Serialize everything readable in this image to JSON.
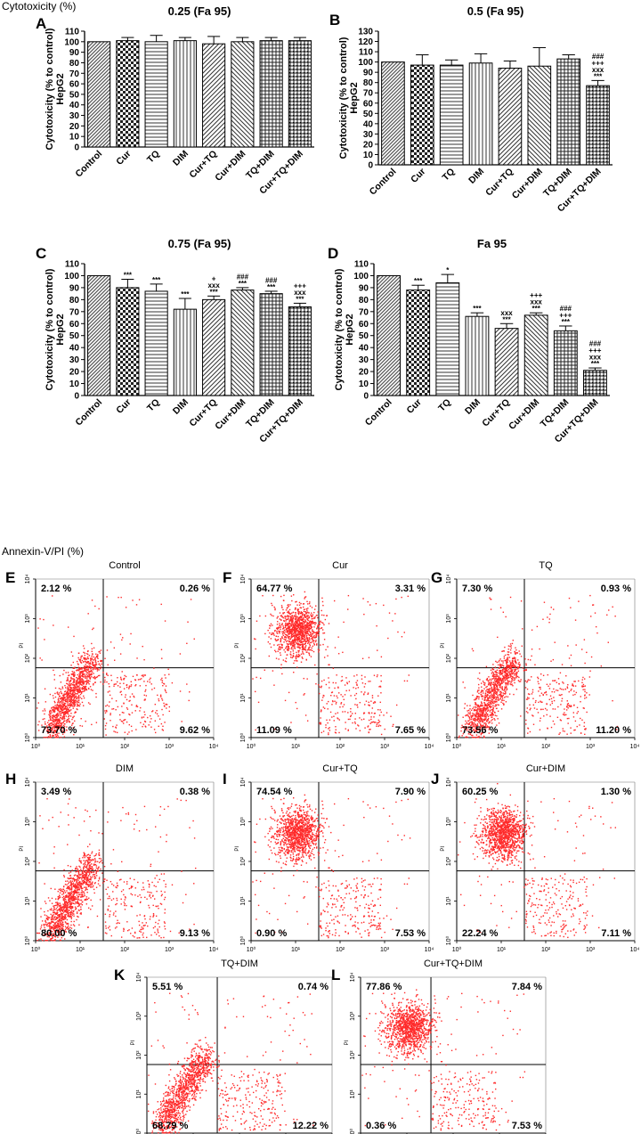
{
  "sections": {
    "cytotoxicity": "Cytotoxicity (%)",
    "annexin": "Annexin-V/PI (%)"
  },
  "colors": {
    "scatter": "#ff2a2a",
    "axis": "#000000",
    "bar_edge": "#000000"
  },
  "chart_data": [
    {
      "type": "bar",
      "panel": "A",
      "title": "0.25 (Fa 95)",
      "ylabel": "Cytotoxicity (% to control)",
      "ylabel2": "HepG2",
      "ylim": [
        0,
        110
      ],
      "yticks": [
        0,
        10,
        20,
        30,
        40,
        50,
        60,
        70,
        80,
        90,
        100,
        110
      ],
      "categories": [
        "Control",
        "Cur",
        "TQ",
        "DIM",
        "Cur+TQ",
        "Cur+DIM",
        "TQ+DIM",
        "Cur+TQ+DIM"
      ],
      "values": [
        100,
        101,
        100,
        101,
        98,
        100,
        101,
        101
      ],
      "errors": [
        0,
        3,
        6,
        3,
        7,
        4,
        3,
        3
      ],
      "annotations": [
        "",
        "",
        "",
        "",
        "",
        "",
        "",
        ""
      ]
    },
    {
      "type": "bar",
      "panel": "B",
      "title": "0.5 (Fa 95)",
      "ylabel": "Cytotoxicity (% to control)",
      "ylabel2": "HepG2",
      "ylim": [
        0,
        130
      ],
      "yticks": [
        0,
        10,
        20,
        30,
        40,
        50,
        60,
        70,
        80,
        90,
        100,
        110,
        120,
        130
      ],
      "categories": [
        "Control",
        "Cur",
        "TQ",
        "DIM",
        "Cur+TQ",
        "Cur+DIM",
        "TQ+DIM",
        "Cur+TQ+DIM"
      ],
      "values": [
        100,
        97,
        97,
        99,
        94,
        96,
        103,
        77
      ],
      "errors": [
        0,
        10,
        5,
        9,
        7,
        18,
        4,
        5
      ],
      "annotations": [
        "",
        "",
        "",
        "",
        "",
        "",
        "",
        "###\n+++\nxxx\n***"
      ]
    },
    {
      "type": "bar",
      "panel": "C",
      "title": "0.75 (Fa 95)",
      "ylabel": "Cytotoxicity (% to control)",
      "ylabel2": "HepG2",
      "ylim": [
        0,
        110
      ],
      "yticks": [
        0,
        10,
        20,
        30,
        40,
        50,
        60,
        70,
        80,
        90,
        100,
        110
      ],
      "categories": [
        "Control",
        "Cur",
        "TQ",
        "DIM",
        "Cur+TQ",
        "Cur+DIM",
        "TQ+DIM",
        "Cur+TQ+DIM"
      ],
      "values": [
        100,
        90,
        87,
        72,
        80,
        88,
        85,
        74
      ],
      "errors": [
        0,
        7,
        6,
        9,
        3,
        2,
        2,
        3
      ],
      "annotations": [
        "",
        "***",
        "***",
        "***",
        "+\nxxx\n***",
        "###\n***",
        "###\n***",
        "+++\nxxx\n***"
      ]
    },
    {
      "type": "bar",
      "panel": "D",
      "title": "Fa 95",
      "ylabel": "Cytotoxicity (% to control)",
      "ylabel2": "HepG2",
      "ylim": [
        0,
        110
      ],
      "yticks": [
        0,
        10,
        20,
        30,
        40,
        50,
        60,
        70,
        80,
        90,
        100,
        110
      ],
      "categories": [
        "Control",
        "Cur",
        "TQ",
        "DIM",
        "Cur+TQ",
        "Cur+DIM",
        "TQ+DIM",
        "Cur+TQ+DIM"
      ],
      "values": [
        100,
        88,
        94,
        66,
        56,
        67,
        54,
        21
      ],
      "errors": [
        0,
        4,
        7,
        3,
        4,
        2,
        4,
        2
      ],
      "annotations": [
        "",
        "***",
        "*",
        "***",
        "xxx\n***",
        "+++\nxxx\n***",
        "###\n+++\n***",
        "###\n+++\nxxx\n***"
      ]
    },
    {
      "type": "scatter",
      "panel": "E",
      "title": "Control",
      "ylabel": "PI",
      "axis_ticks": [
        "10⁰",
        "10¹",
        "10²",
        "10³",
        "10⁴"
      ],
      "quadrants": {
        "ul": "2.12 %",
        "ur": "0.26 %",
        "ll": "73.70 %",
        "lr": "9.62 %"
      },
      "cluster": "ll"
    },
    {
      "type": "scatter",
      "panel": "F",
      "title": "Cur",
      "ylabel": "PI",
      "axis_ticks": [
        "10⁰",
        "10¹",
        "10²",
        "10³",
        "10⁴"
      ],
      "quadrants": {
        "ul": "64.77 %",
        "ur": "3.31 %",
        "ll": "11.09 %",
        "lr": "7.65 %"
      },
      "cluster": "ul"
    },
    {
      "type": "scatter",
      "panel": "G",
      "title": "TQ",
      "ylabel": "PI",
      "axis_ticks": [
        "10⁰",
        "10¹",
        "10²",
        "10³",
        "10⁴"
      ],
      "quadrants": {
        "ul": "7.30 %",
        "ur": "0.93 %",
        "ll": "73.56 %",
        "lr": "11.20 %"
      },
      "cluster": "ll"
    },
    {
      "type": "scatter",
      "panel": "H",
      "title": "DIM",
      "ylabel": "PI",
      "axis_ticks": [
        "10⁰",
        "10¹",
        "10²",
        "10³",
        "10⁴"
      ],
      "quadrants": {
        "ul": "3.49 %",
        "ur": "0.38 %",
        "ll": "80.00 %",
        "lr": "9.13 %"
      },
      "cluster": "ll"
    },
    {
      "type": "scatter",
      "panel": "I",
      "title": "Cur+TQ",
      "ylabel": "PI",
      "axis_ticks": [
        "10⁰",
        "10¹",
        "10²",
        "10³",
        "10⁴"
      ],
      "quadrants": {
        "ul": "74.54 %",
        "ur": "7.90 %",
        "ll": "0.90 %",
        "lr": "7.53 %"
      },
      "cluster": "ul"
    },
    {
      "type": "scatter",
      "panel": "J",
      "title": "Cur+DIM",
      "ylabel": "PI",
      "axis_ticks": [
        "10⁰",
        "10¹",
        "10²",
        "10³",
        "10⁴"
      ],
      "quadrants": {
        "ul": "60.25 %",
        "ur": "1.30 %",
        "ll": "22.24 %",
        "lr": "7.11 %"
      },
      "cluster": "ul"
    },
    {
      "type": "scatter",
      "panel": "K",
      "title": "TQ+DIM",
      "ylabel": "PI",
      "axis_ticks": [
        "10⁰",
        "10¹",
        "10²",
        "10³",
        "10⁴"
      ],
      "quadrants": {
        "ul": "5.51 %",
        "ur": "0.74 %",
        "ll": "68.79 %",
        "lr": "12.22 %"
      },
      "cluster": "ll"
    },
    {
      "type": "scatter",
      "panel": "L",
      "title": "Cur+TQ+DIM",
      "ylabel": "PI",
      "axis_ticks": [
        "10⁰",
        "10¹",
        "10²",
        "10³",
        "10⁴"
      ],
      "quadrants": {
        "ul": "77.86 %",
        "ur": "7.84 %",
        "ll": "0.36 %",
        "lr": "7.53 %"
      },
      "cluster": "ul"
    }
  ]
}
